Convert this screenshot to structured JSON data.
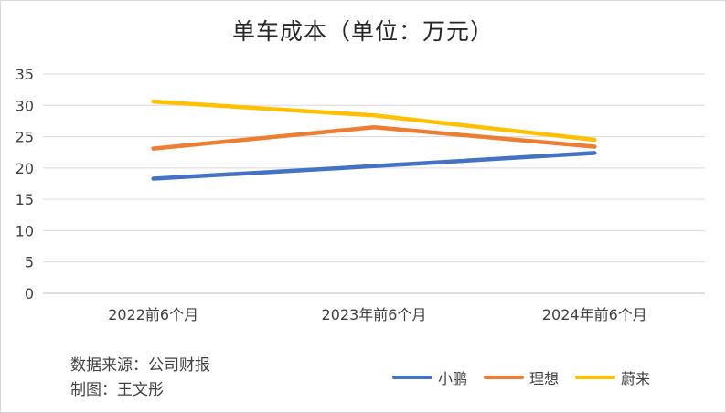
{
  "chart_data": {
    "type": "line",
    "title": "单车成本（单位：万元）",
    "categories": [
      "2022前6个月",
      "2023年前6个月",
      "2024年前6个月"
    ],
    "series": [
      {
        "name": "小鹏",
        "color": "#4472C4",
        "values": [
          18.3,
          20.3,
          22.4
        ]
      },
      {
        "name": "理想",
        "color": "#ED7D31",
        "values": [
          23.1,
          26.5,
          23.4
        ]
      },
      {
        "name": "蔚来",
        "color": "#FFC000",
        "values": [
          30.6,
          28.4,
          24.5
        ]
      }
    ],
    "ylim": [
      0,
      35
    ],
    "yticks": [
      0,
      5,
      10,
      15,
      20,
      25,
      30,
      35
    ],
    "grid": true,
    "legend": "bottom-right"
  },
  "notes": {
    "source": "数据来源：公司财报",
    "author": "制图：王文彤"
  }
}
